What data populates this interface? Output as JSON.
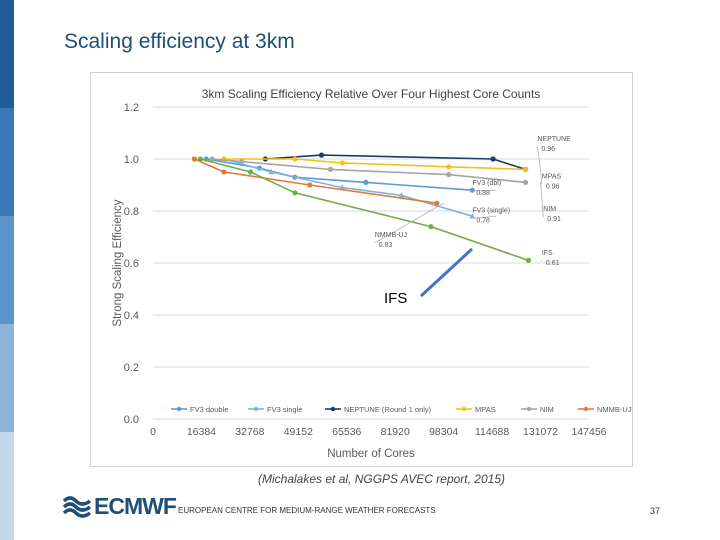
{
  "slide": {
    "title": "Scaling efficiency at 3km",
    "caption": "(Michalakes et al, NGGPS AVEC report, 2015)",
    "footer": "EUROPEAN CENTRE FOR MEDIUM-RANGE WEATHER FORECASTS",
    "page_number": "37",
    "logo_text": "ECMWF",
    "sidebar_colors": [
      "#1f5c99",
      "#3a79b8",
      "#5b93c9",
      "#8fb4da",
      "#c4d8ec"
    ]
  },
  "overlay": {
    "label": "IFS",
    "arrow_color": "#4472c4"
  },
  "chart_data": {
    "type": "line",
    "title": "3km Scaling Efficiency Relative Over Four Highest Core Counts",
    "xlabel": "Number of Cores",
    "ylabel": "Strong Scaling Efficiency",
    "xlim": [
      0,
      147456
    ],
    "ylim": [
      0,
      1.2
    ],
    "xticks": [
      "0",
      "16384",
      "32768",
      "49152",
      "65536",
      "81920",
      "98304",
      "114688",
      "131072",
      "147456"
    ],
    "yticks": [
      "0.0",
      "0.2",
      "0.4",
      "0.6",
      "0.8",
      "1.0",
      "1.2"
    ],
    "grid": true,
    "legend_position": "bottom",
    "series": [
      {
        "name": "FV3 double",
        "color": "#5b9bd5",
        "marker": "circle",
        "points": [
          [
            18000,
            1.0
          ],
          [
            36000,
            0.965
          ],
          [
            48000,
            0.93
          ],
          [
            72000,
            0.91
          ],
          [
            108000,
            0.88
          ]
        ]
      },
      {
        "name": "FV3 single",
        "color": "#7fb3dd",
        "marker": "triangle",
        "points": [
          [
            24000,
            1.0
          ],
          [
            40000,
            0.95
          ],
          [
            64000,
            0.89
          ],
          [
            84000,
            0.86
          ],
          [
            108000,
            0.78
          ]
        ]
      },
      {
        "name": "NEPTUNE (Round 1 only)",
        "color": "#1f3864",
        "marker": "circle",
        "points": [
          [
            38000,
            1.0
          ],
          [
            57000,
            1.015
          ],
          [
            115000,
            1.0
          ],
          [
            126000,
            0.96
          ]
        ]
      },
      {
        "name": "MPAS",
        "color": "#f2c314",
        "marker": "circle",
        "points": [
          [
            24000,
            1.0
          ],
          [
            48000,
            1.0
          ],
          [
            64000,
            0.985
          ],
          [
            100000,
            0.97
          ],
          [
            126000,
            0.96
          ]
        ]
      },
      {
        "name": "NIM",
        "color": "#a5a5a5",
        "marker": "circle",
        "points": [
          [
            20000,
            1.0
          ],
          [
            30000,
            0.99
          ],
          [
            60000,
            0.96
          ],
          [
            100000,
            0.94
          ],
          [
            126000,
            0.91
          ]
        ]
      },
      {
        "name": "NMMB-UJ",
        "color": "#e07b39",
        "marker": "circle",
        "points": [
          [
            14000,
            1.0
          ],
          [
            24000,
            0.95
          ],
          [
            53000,
            0.9
          ],
          [
            96000,
            0.83
          ]
        ]
      },
      {
        "name": "IFS",
        "color": "#70ad47",
        "marker": "circle",
        "points": [
          [
            16000,
            1.0
          ],
          [
            33000,
            0.95
          ],
          [
            48000,
            0.87
          ],
          [
            94000,
            0.74
          ],
          [
            127000,
            0.61
          ]
        ]
      }
    ],
    "annotations": [
      {
        "text": "NEPTUNE",
        "value": "0.96",
        "at": [
          131072,
          0.96
        ],
        "text_at": [
          130000,
          1.07
        ]
      },
      {
        "text": "MPAS",
        "value": "0.96",
        "at": [
          131072,
          0.96
        ],
        "text_at": [
          131500,
          0.925
        ]
      },
      {
        "text": "FV3 (dbl)",
        "value": "0.88",
        "at": [
          116000,
          0.88
        ],
        "text_at": [
          108000,
          0.9
        ]
      },
      {
        "text": "NIM",
        "value": "0.91",
        "at": [
          131072,
          0.91
        ],
        "text_at": [
          132000,
          0.8
        ]
      },
      {
        "text": "FV3 (single)",
        "value": "0.78",
        "at": [
          116000,
          0.78
        ],
        "text_at": [
          108000,
          0.795
        ]
      },
      {
        "text": "NMMB-UJ",
        "value": "0.83",
        "at": [
          98304,
          0.83
        ],
        "text_at": [
          75000,
          0.7
        ]
      },
      {
        "text": "IFS",
        "value": "0.61",
        "at": [
          131072,
          0.61
        ],
        "text_at": [
          131500,
          0.63
        ]
      }
    ]
  }
}
